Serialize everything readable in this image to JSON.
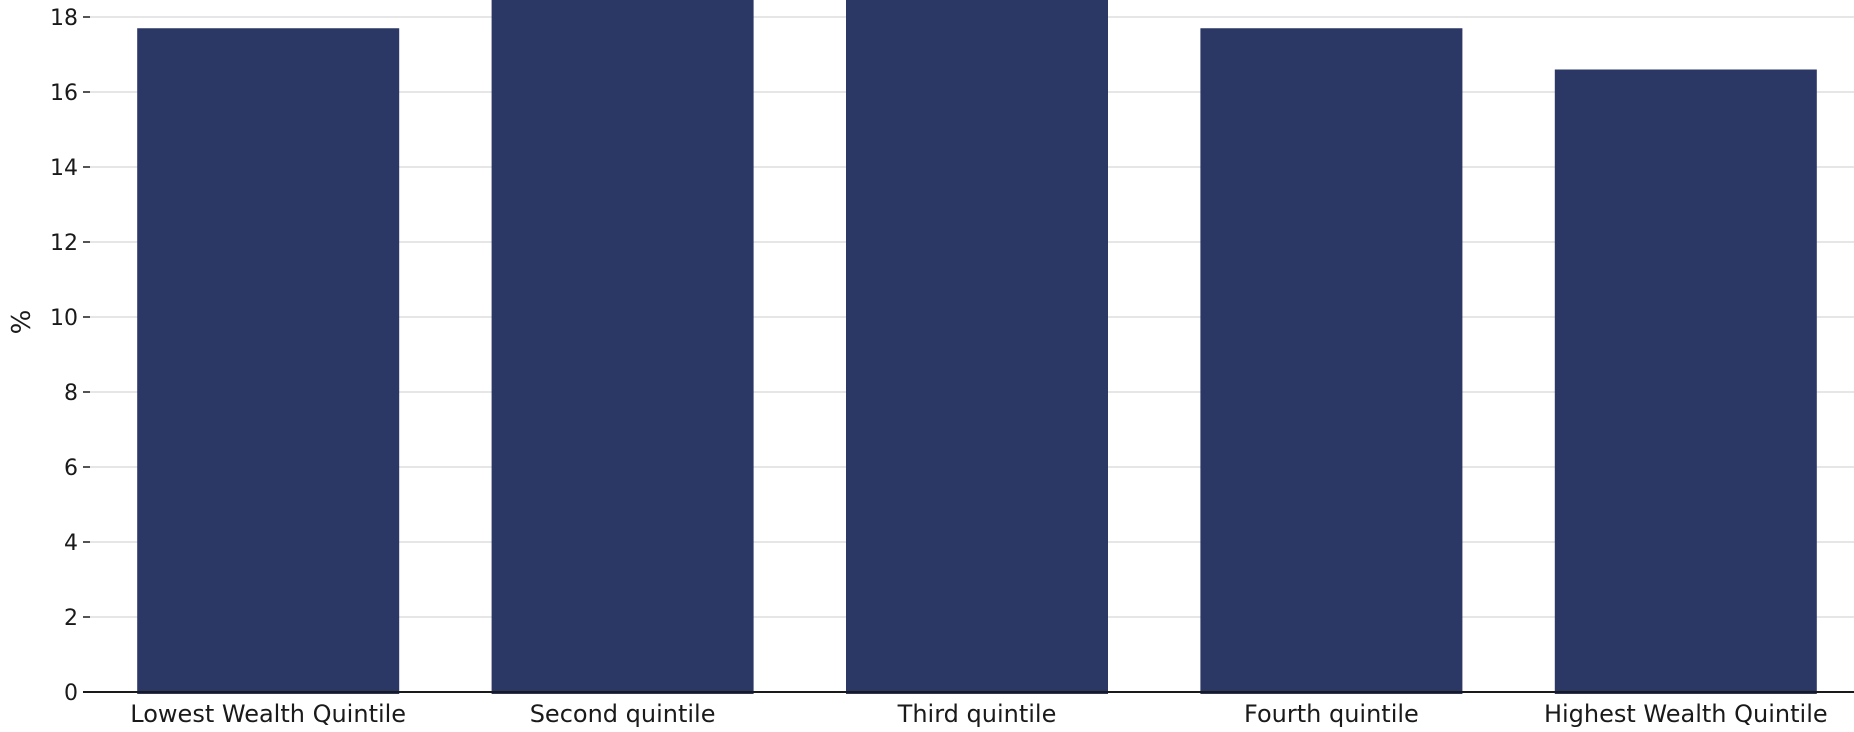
{
  "chart_data": {
    "type": "bar",
    "title": "",
    "xlabel": "",
    "ylabel": "%",
    "categories": [
      "Lowest Wealth Quintile",
      "Second quintile",
      "Third quintile",
      "Fourth quintile",
      "Highest Wealth Quintile"
    ],
    "values": [
      17.7,
      18.8,
      18.6,
      17.7,
      16.6
    ],
    "ylim": [
      0,
      18.5
    ],
    "yticks": [
      0,
      2,
      4,
      6,
      8,
      10,
      12,
      14,
      16,
      18
    ],
    "grid": true,
    "legend": "none",
    "colors": {
      "bar": "#2b3764",
      "grid": "#e6e6e6",
      "axis": "#1a1a1a"
    }
  }
}
